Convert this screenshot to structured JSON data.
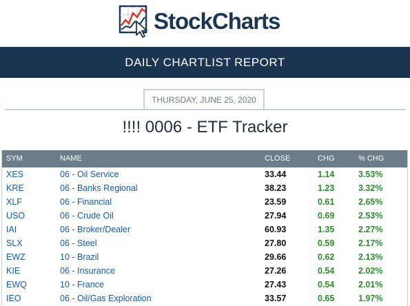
{
  "header": {
    "logo_text": "StockCharts",
    "report_title": "DAILY CHARTLIST REPORT",
    "date": "THURSDAY, JUNE 25, 2020",
    "list_title": "!!!! 0006 - ETF Tracker"
  },
  "table": {
    "columns": [
      "SYM",
      "NAME",
      "CLOSE",
      "CHG",
      "% CHG"
    ],
    "rows": [
      {
        "sym": "XES",
        "name": "06 - Oil Service",
        "close": "33.44",
        "chg": "1.14",
        "pct": "3.53%"
      },
      {
        "sym": "KRE",
        "name": "06 - Banks Regional",
        "close": "38.23",
        "chg": "1.23",
        "pct": "3.32%"
      },
      {
        "sym": "XLF",
        "name": "06 - Financial",
        "close": "23.59",
        "chg": "0.61",
        "pct": "2.65%"
      },
      {
        "sym": "USO",
        "name": "06 - Crude Oil",
        "close": "27.94",
        "chg": "0.69",
        "pct": "2.53%"
      },
      {
        "sym": "IAI",
        "name": "06 - Broker/Dealer",
        "close": "60.93",
        "chg": "1.35",
        "pct": "2.27%"
      },
      {
        "sym": "SLX",
        "name": "06 - Steel",
        "close": "27.80",
        "chg": "0.59",
        "pct": "2.17%"
      },
      {
        "sym": "EWZ",
        "name": "10 - Brazil",
        "close": "29.66",
        "chg": "0.62",
        "pct": "2.13%"
      },
      {
        "sym": "KIE",
        "name": "06 - Insurance",
        "close": "27.26",
        "chg": "0.54",
        "pct": "2.02%"
      },
      {
        "sym": "EWQ",
        "name": "10 - France",
        "close": "27.43",
        "chg": "0.54",
        "pct": "2.01%"
      },
      {
        "sym": "IEO",
        "name": "06 - Oil/Gas Exploration",
        "close": "33.57",
        "chg": "0.65",
        "pct": "1.97%"
      }
    ]
  },
  "colors": {
    "banner": "#1b3452",
    "table_header": "#6d7c89",
    "link": "#1a5aa0",
    "positive": "#2f8a2f"
  },
  "icons": [
    "stockcharts-logo-icon"
  ]
}
